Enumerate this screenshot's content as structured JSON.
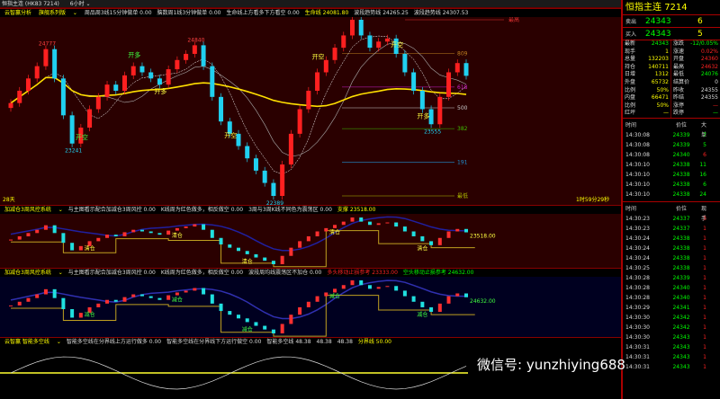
{
  "topbar": {
    "title": "恒指主连 (HK83 7214)",
    "period": "6小时"
  },
  "main": {
    "indicator": "云智赢分析",
    "preset": "旗舰系列版",
    "items": [
      {
        "t": "周品周3线15分钟做单 0.00",
        "c": "w"
      },
      {
        "t": "脑数周1线3分钟做单 0.00",
        "c": "w"
      },
      {
        "t": "生命线上方看多下方看空 0.00",
        "c": "w"
      },
      {
        "t": "生命线 24081.80",
        "c": "y"
      },
      {
        "t": "波段趋势线 24265.25",
        "c": "w"
      },
      {
        "t": "波段趋势线 24307.53",
        "c": "w"
      }
    ],
    "price_labels": [
      "24777",
      "23241",
      "24840",
      "22389",
      "25255",
      "23555"
    ],
    "signals": [
      "开空",
      "开多",
      "开空",
      "开多",
      "开空",
      "开多",
      "开多",
      "开空"
    ],
    "fib": [
      {
        "label": "最高",
        "value": 25255,
        "color": "#e03030"
      },
      {
        "label": "809",
        "value": 24705,
        "color": "#c08020"
      },
      {
        "label": "618",
        "value": 24160,
        "color": "#d020d0"
      },
      {
        "label": "500",
        "value": 23822,
        "color": "#cccccc"
      },
      {
        "label": "382",
        "value": 23484,
        "color": "#40c000"
      },
      {
        "label": "191",
        "value": 22937,
        "color": "#2090d0"
      },
      {
        "label": "最低",
        "value": 22389,
        "color": "#b0c000"
      }
    ],
    "corner_left": "28天",
    "corner_right": "1时59分29秒",
    "closes": [
      23900,
      24100,
      24300,
      24500,
      24777,
      24300,
      23700,
      23241,
      23500,
      23800,
      24000,
      24200,
      24100,
      24350,
      24500,
      24400,
      24300,
      24200,
      24450,
      24600,
      24700,
      24840,
      24500,
      24000,
      23600,
      23400,
      23200,
      23000,
      22800,
      22600,
      22389,
      22900,
      23400,
      23800,
      24100,
      24400,
      24600,
      24800,
      25000,
      25255,
      25000,
      24800,
      24900,
      24950,
      24700,
      24400,
      24100,
      23800,
      23555,
      24000,
      24400,
      24550,
      24343
    ]
  },
  "panel2": {
    "title": "加减仓3周风控系统",
    "items": [
      {
        "t": "与主图看示配合加减仓3周风控 0.00",
        "c": "w"
      },
      {
        "t": "K线周为红色做多，相反做空 0.00",
        "c": "w"
      },
      {
        "t": "3周与3周K线不同色为震荡区 0.00",
        "c": "w"
      },
      {
        "t": "支撑 23518.00",
        "c": "y"
      }
    ],
    "value_label": "23518.00",
    "tags": [
      "清仓",
      "清仓",
      "清仓",
      "清仓",
      "清仓"
    ]
  },
  "panel3": {
    "title": "加减仓3周风控系统",
    "items": [
      {
        "t": "与主图看示配合加减仓3周风控 0.00",
        "c": "w"
      },
      {
        "t": "K线周为红色做多，相反做空 0.00",
        "c": "w"
      },
      {
        "t": "波段周均线震荡区不加仓 0.00",
        "c": "w"
      },
      {
        "t": "多头移动止损参考 23333.00",
        "c": "r"
      },
      {
        "t": "空头移动止损参考 24632.00",
        "c": "g"
      }
    ],
    "value_label": "24632.00",
    "tags": [
      "减仓",
      "减仓",
      "减仓",
      "减仓",
      "减仓"
    ]
  },
  "panel4": {
    "title": "云智赢 智能多空线",
    "items": [
      {
        "t": "智能多空线在分界线上方运行做多 0.00",
        "c": "w"
      },
      {
        "t": "智能多空线在分界线下方运行做空 0.00",
        "c": "w"
      },
      {
        "t": "智能多空线 48.38",
        "c": "w"
      },
      {
        "t": "48.38",
        "c": "w"
      },
      {
        "t": "48.38",
        "c": "w"
      },
      {
        "t": "分界线 50.00",
        "c": "y"
      }
    ]
  },
  "quote": {
    "title": "恒指主连",
    "code": "7214",
    "sell": {
      "label": "卖出",
      "price": "24343",
      "vol": "6"
    },
    "buy": {
      "label": "买入",
      "price": "24343",
      "vol": "5"
    },
    "rows": [
      [
        "最新",
        "24343",
        "g"
      ],
      [
        "涨跌",
        "-12/0.05%",
        "g"
      ],
      [
        "现手",
        "1",
        "y"
      ],
      [
        "涨速",
        "0.02%",
        "r"
      ],
      [
        "总量",
        "132203",
        "y"
      ],
      [
        "开盘",
        "24360",
        "r"
      ],
      [
        "持仓",
        "140711",
        "y"
      ],
      [
        "最高",
        "24632",
        "r"
      ],
      [
        "日增",
        "1312",
        "y"
      ],
      [
        "最低",
        "24076",
        "g"
      ],
      [
        "外盘",
        "65732",
        "y"
      ],
      [
        "结算价",
        "0",
        "w"
      ],
      [
        "比例",
        "50%",
        "y"
      ],
      [
        "昨收",
        "24355",
        "w"
      ],
      [
        "内盘",
        "66471",
        "y"
      ],
      [
        "昨结",
        "24355",
        "w"
      ],
      [
        "比例",
        "50%",
        "y"
      ],
      [
        "涨停",
        "—",
        "r"
      ],
      [
        "红坪",
        "—",
        "y"
      ],
      [
        "跌停",
        "—",
        "g"
      ]
    ]
  },
  "ticks1": {
    "headers": [
      "时间",
      "价位",
      "大单"
    ],
    "rows": [
      [
        "14:30:08",
        "24339",
        "7",
        "g"
      ],
      [
        "14:30:08",
        "24339",
        "5",
        "g"
      ],
      [
        "14:30:08",
        "24340",
        "6",
        "r"
      ],
      [
        "14:30:10",
        "24338",
        "11",
        "g"
      ],
      [
        "14:30:10",
        "24338",
        "16",
        "g"
      ],
      [
        "14:30:10",
        "24338",
        "6",
        "g"
      ],
      [
        "14:30:10",
        "24338",
        "24",
        "g"
      ]
    ]
  },
  "ticks2": {
    "headers": [
      "时间",
      "价位",
      "现手"
    ],
    "rows": [
      [
        "14:30:23",
        "24337",
        "3"
      ],
      [
        "14:30:23",
        "24337",
        "1"
      ],
      [
        "14:30:24",
        "24338",
        "1"
      ],
      [
        "14:30:24",
        "24338",
        "1"
      ],
      [
        "14:30:24",
        "24338",
        "1"
      ],
      [
        "14:30:25",
        "24338",
        "1"
      ],
      [
        "14:30:28",
        "24339",
        "1"
      ],
      [
        "14:30:28",
        "24340",
        "1"
      ],
      [
        "14:30:28",
        "24340",
        "1"
      ],
      [
        "14:30:29",
        "24341",
        "1"
      ],
      [
        "14:30:30",
        "24342",
        "1"
      ],
      [
        "14:30:30",
        "24342",
        "1"
      ],
      [
        "14:30:30",
        "24343",
        "1"
      ],
      [
        "14:30:31",
        "24343",
        "1"
      ],
      [
        "14:30:31",
        "24343",
        "1"
      ],
      [
        "14:30:31",
        "24343",
        "1"
      ]
    ]
  },
  "watermark": "微信号: yunzhiying688"
}
